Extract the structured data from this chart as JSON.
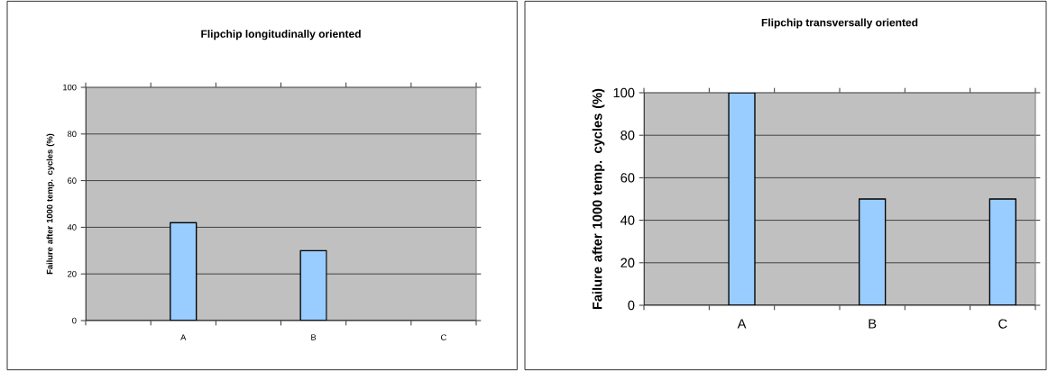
{
  "chart_data": [
    {
      "type": "bar",
      "title": "Flipchip longitudinally oriented",
      "ylabel": "Failure after 1000 temp. cycles (%)",
      "categories": [
        null,
        "A",
        null,
        "B",
        null,
        "C"
      ],
      "values": [
        null,
        42,
        null,
        30,
        null,
        null
      ],
      "color": "#99ccff",
      "ylim": [
        0,
        100
      ],
      "yticks": [
        0,
        20,
        40,
        60,
        80,
        100
      ],
      "grid": "y"
    },
    {
      "type": "bar",
      "title": "Flipchip transversally oriented",
      "ylabel": "Failure after 1000 temp. cycles (%)",
      "categories": [
        null,
        "A",
        null,
        "B",
        null,
        "C"
      ],
      "values": [
        null,
        100,
        null,
        50,
        null,
        50
      ],
      "color": "#99ccff",
      "ylim": [
        0,
        100
      ],
      "yticks": [
        0,
        20,
        40,
        60,
        80,
        100
      ],
      "grid": "y"
    }
  ]
}
